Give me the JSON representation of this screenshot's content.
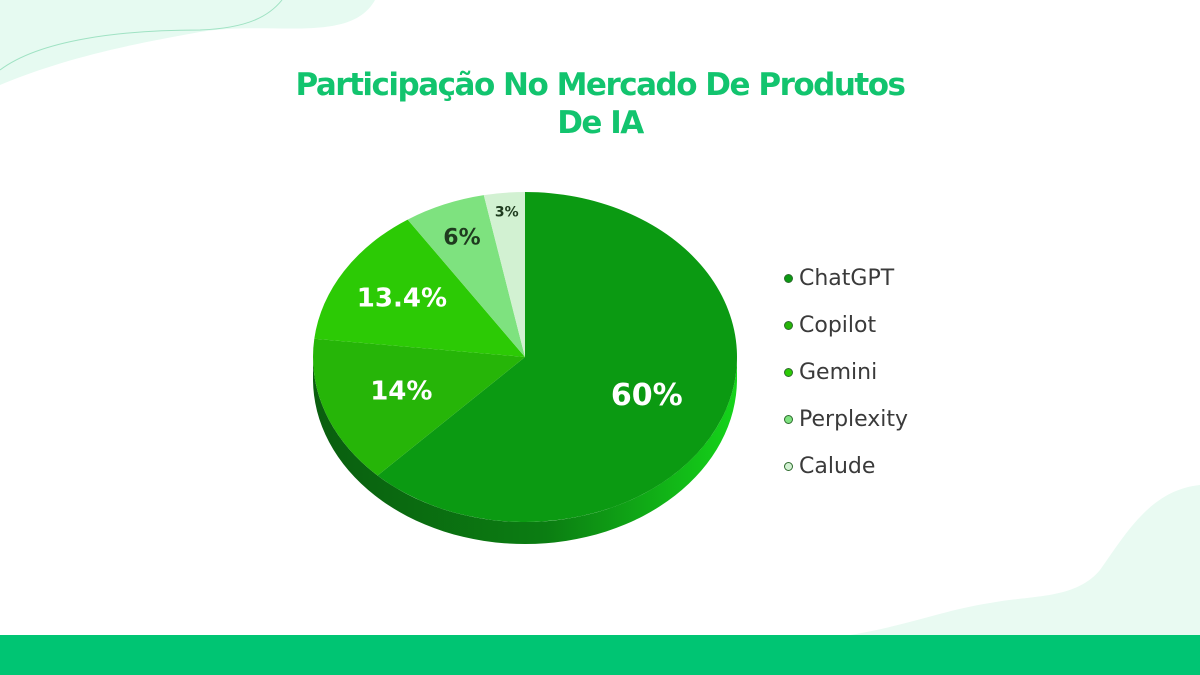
{
  "title_line1": "Participação No Mercado De Produtos",
  "title_line2": "De IA",
  "chart_data": {
    "type": "pie",
    "title": "Participação No Mercado De Produtos De IA",
    "categories": [
      "ChatGPT",
      "Copilot",
      "Gemini",
      "Perplexity",
      "Calude"
    ],
    "values": [
      60,
      14,
      13.4,
      6,
      3
    ],
    "labels": [
      "60%",
      "14%",
      "13.4%",
      "6%",
      "3%"
    ],
    "colors": [
      "#0b9a12",
      "#26b508",
      "#2cca05",
      "#7ee27f",
      "#d2f1d2"
    ],
    "label_colors": [
      "#ffffff",
      "#ffffff",
      "#ffffff",
      "#1f3b1f",
      "#1f3b1f"
    ],
    "legend_position": "right",
    "style": "3d"
  }
}
